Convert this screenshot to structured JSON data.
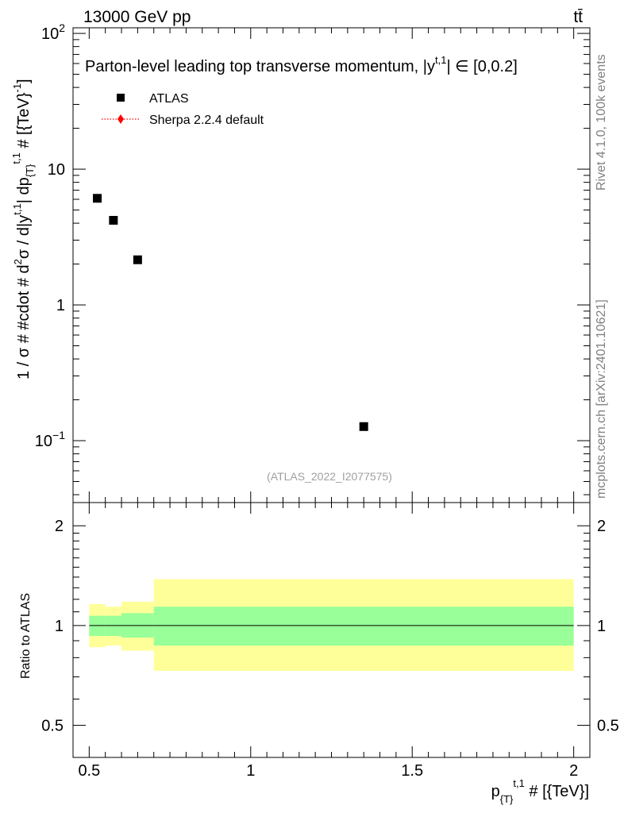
{
  "header": {
    "energy_label": "13000 GeV pp",
    "process_label": "tt̄"
  },
  "side_labels": {
    "rivet": "Rivet 4.1.0,  100k events",
    "source": "mcplots.cern.ch [arXiv:2401.10621]"
  },
  "chart_data": [
    {
      "type": "scatter",
      "panel": "main",
      "title": "Parton-level leading top transverse momentum, |y",
      "title_sup": "t,1",
      "title_tail": "| ∈ [0,0.2]",
      "ylabel": "1 / σ # #cdot # d²σ / d|y^{t,1}| dp_{T}^{t,1} # [{TeV}^{-1}]",
      "ylabel_parts": {
        "a": "1 / σ # #cdot # d",
        "b": "2",
        "c": "σ / d|y",
        "d": "t,1",
        "e": "| dp",
        "f": "{T}",
        "g": "t,1",
        "h": " # [{TeV}",
        "i": "-1",
        "j": "]"
      },
      "yscale": "log",
      "xlim": [
        0.45,
        2.05
      ],
      "ylim": [
        0.035,
        110
      ],
      "yticks": [
        {
          "value": 0.1,
          "base": "10",
          "exp": "−1"
        },
        {
          "value": 1,
          "base": "1",
          "exp": ""
        },
        {
          "value": 10,
          "base": "10",
          "exp": ""
        },
        {
          "value": 100,
          "base": "10",
          "exp": "2"
        }
      ],
      "legend": {
        "position": "top-left",
        "entries": [
          {
            "label": "ATLAS",
            "marker": "square",
            "color": "#000000"
          },
          {
            "label": "Sherpa 2.2.4 default",
            "marker": "diamond-dotted",
            "color": "#ff0000"
          }
        ]
      },
      "series": [
        {
          "name": "ATLAS",
          "x": [
            0.525,
            0.575,
            0.65,
            1.35
          ],
          "y": [
            6.1,
            4.2,
            2.15,
            0.127
          ]
        }
      ],
      "watermark": "(ATLAS_2022_I2077575)"
    },
    {
      "type": "area",
      "panel": "ratio",
      "ylabel": "Ratio to ATLAS",
      "xlabel_parts": {
        "a": "p",
        "b": "{T}",
        "c": "t,1",
        "d": " # [{TeV}]"
      },
      "yscale": "log",
      "xlim": [
        0.45,
        2.05
      ],
      "ylim": [
        0.4,
        2.35
      ],
      "xticks": [
        {
          "value": 0.5,
          "label": "0.5"
        },
        {
          "value": 1,
          "label": "1"
        },
        {
          "value": 1.5,
          "label": "1.5"
        },
        {
          "value": 2,
          "label": "2"
        }
      ],
      "yticks": [
        {
          "value": 0.5,
          "label": "0.5"
        },
        {
          "value": 1,
          "label": "1"
        },
        {
          "value": 2,
          "label": "2"
        }
      ],
      "reference_line": 1,
      "bins": [
        {
          "x0": 0.5,
          "x1": 0.55,
          "inner": [
            0.93,
            1.07
          ],
          "outer": [
            0.86,
            1.16
          ]
        },
        {
          "x0": 0.55,
          "x1": 0.6,
          "inner": [
            0.93,
            1.07
          ],
          "outer": [
            0.87,
            1.14
          ]
        },
        {
          "x0": 0.6,
          "x1": 0.7,
          "inner": [
            0.92,
            1.09
          ],
          "outer": [
            0.84,
            1.18
          ]
        },
        {
          "x0": 0.7,
          "x1": 2.0,
          "inner": [
            0.87,
            1.14
          ],
          "outer": [
            0.73,
            1.38
          ]
        }
      ],
      "colors": {
        "outer_band": "#ffff99",
        "inner_band": "#99ff99",
        "line": "#000000"
      }
    }
  ]
}
